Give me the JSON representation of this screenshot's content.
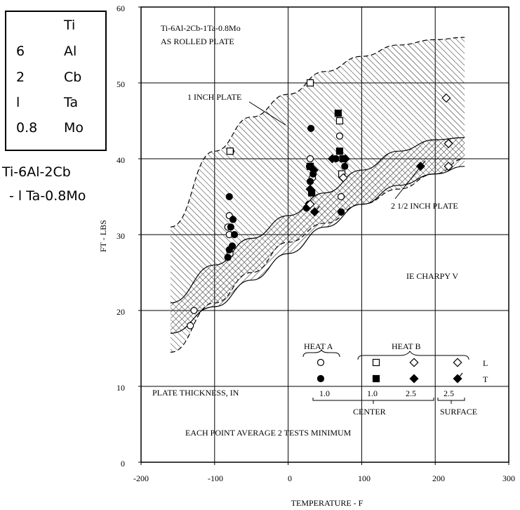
{
  "composition_box": {
    "rows": [
      {
        "num": "",
        "element": "Ti"
      },
      {
        "num": "6",
        "element": "Al"
      },
      {
        "num": "2",
        "element": "Cb"
      },
      {
        "num": "l",
        "element": "Ta"
      },
      {
        "num": "0.8",
        "element": "Mo"
      }
    ],
    "alloy_name_line1": "Ti-6Al-2Cb",
    "alloy_name_line2": "- l Ta-0.8Mo"
  },
  "chart_data": {
    "type": "scatter",
    "xlabel": "TEMPERATURE - F",
    "ylabel": "FT - LBS",
    "xlim": [
      -200,
      300
    ],
    "ylim": [
      0,
      60
    ],
    "xticks": [
      -200,
      -100,
      0,
      100,
      200,
      300
    ],
    "xtick_labels": [
      "-200",
      "-100",
      "0",
      "100",
      "200",
      "300"
    ],
    "yticks": [
      0,
      10,
      20,
      30,
      40,
      50,
      60
    ],
    "ytick_labels": [
      "0",
      "10",
      "20",
      "30",
      "40",
      "50",
      "60"
    ],
    "grid": true,
    "annotations": {
      "alloy": "Ti-6Al-2Cb-1Ta-0.8Mo",
      "condition": "AS ROLLED PLATE",
      "band1_label": "1 INCH PLATE",
      "band2_label": "2 1/2 INCH PLATE",
      "test": "IE CHARPY V",
      "thickness_label": "PLATE THICKNESS, IN",
      "note": "EACH POINT AVERAGE 2 TESTS MINIMUM"
    },
    "legend": {
      "heat_a": "HEAT A",
      "heat_b": "HEAT B",
      "row_l": "L",
      "row_t": "T",
      "thick_a": "1.0",
      "thick_b1": "1.0",
      "thick_b2": "2.5",
      "thick_b3": "2.5",
      "center": "CENTER",
      "surface": "SURFACE"
    },
    "bands": [
      {
        "name": "1 INCH PLATE",
        "upper": [
          [
            -160,
            31
          ],
          [
            -100,
            41
          ],
          [
            -50,
            45.5
          ],
          [
            0,
            48.5
          ],
          [
            50,
            51.5
          ],
          [
            100,
            53.5
          ],
          [
            150,
            55
          ],
          [
            200,
            55.7
          ],
          [
            240,
            56
          ]
        ],
        "lower": [
          [
            -160,
            14.5
          ],
          [
            -100,
            21
          ],
          [
            -50,
            25
          ],
          [
            0,
            29
          ],
          [
            50,
            31.5
          ],
          [
            100,
            34
          ],
          [
            150,
            36
          ],
          [
            200,
            38
          ],
          [
            240,
            40
          ]
        ]
      },
      {
        "name": "2 1/2 INCH PLATE",
        "upper": [
          [
            -160,
            21
          ],
          [
            -100,
            26
          ],
          [
            -50,
            29.5
          ],
          [
            0,
            32.5
          ],
          [
            50,
            35.5
          ],
          [
            100,
            38.5
          ],
          [
            150,
            41
          ],
          [
            200,
            42.5
          ],
          [
            240,
            42.8
          ]
        ],
        "lower": [
          [
            -160,
            17
          ],
          [
            -100,
            20.5
          ],
          [
            -50,
            24
          ],
          [
            0,
            27.5
          ],
          [
            50,
            31
          ],
          [
            100,
            34
          ],
          [
            150,
            36.5
          ],
          [
            200,
            38
          ],
          [
            240,
            39
          ]
        ]
      }
    ],
    "series": [
      {
        "name": "HEAT A L",
        "marker": "circle-open",
        "points": [
          [
            -128,
            20
          ],
          [
            -133,
            18
          ],
          [
            -82,
            31
          ],
          [
            -80,
            32.5
          ],
          [
            -78,
            41
          ],
          [
            -80,
            30
          ],
          [
            -79,
            27.5
          ],
          [
            30,
            40
          ],
          [
            33,
            37.5
          ],
          [
            70,
            43
          ],
          [
            70,
            41
          ],
          [
            73,
            40
          ],
          [
            72,
            35
          ]
        ]
      },
      {
        "name": "HEAT A T",
        "marker": "circle-filled",
        "points": [
          [
            -80,
            35
          ],
          [
            -78,
            31
          ],
          [
            -75,
            32
          ],
          [
            -80,
            28
          ],
          [
            -82,
            27
          ],
          [
            -76,
            28.5
          ],
          [
            -73,
            30
          ],
          [
            31,
            44
          ],
          [
            29,
            39
          ],
          [
            34,
            38
          ],
          [
            30,
            37
          ],
          [
            28,
            34
          ],
          [
            25,
            33.5
          ],
          [
            65,
            40
          ],
          [
            72,
            33
          ],
          [
            77,
            39
          ]
        ]
      },
      {
        "name": "HEAT B CENTER 1.0 L",
        "marker": "square-open",
        "points": [
          [
            -79,
            41
          ],
          [
            30,
            50
          ],
          [
            70,
            45
          ],
          [
            73,
            38
          ]
        ]
      },
      {
        "name": "HEAT B CENTER 1.0 T",
        "marker": "square-filled",
        "points": [
          [
            68,
            46
          ],
          [
            70,
            41
          ],
          [
            30,
            39
          ],
          [
            32,
            35.5
          ],
          [
            75,
            40
          ]
        ]
      },
      {
        "name": "HEAT B CENTER 2.5 L",
        "marker": "diamond-open",
        "points": [
          [
            30,
            34
          ],
          [
            75,
            37.5
          ],
          [
            218,
            42
          ],
          [
            218,
            39
          ]
        ]
      },
      {
        "name": "HEAT B CENTER 2.5 T",
        "marker": "diamond-filled",
        "points": [
          [
            35,
            38.5
          ],
          [
            60,
            40
          ],
          [
            78,
            40
          ],
          [
            30,
            36
          ]
        ]
      },
      {
        "name": "HEAT B SURFACE 2.5 T",
        "marker": "diamond-tick",
        "points": [
          [
            36,
            33
          ],
          [
            180,
            39
          ]
        ]
      },
      {
        "name": "HEAT B SURFACE 2.5 L",
        "marker": "diamond-open",
        "points": [
          [
            215,
            48
          ]
        ]
      }
    ]
  }
}
